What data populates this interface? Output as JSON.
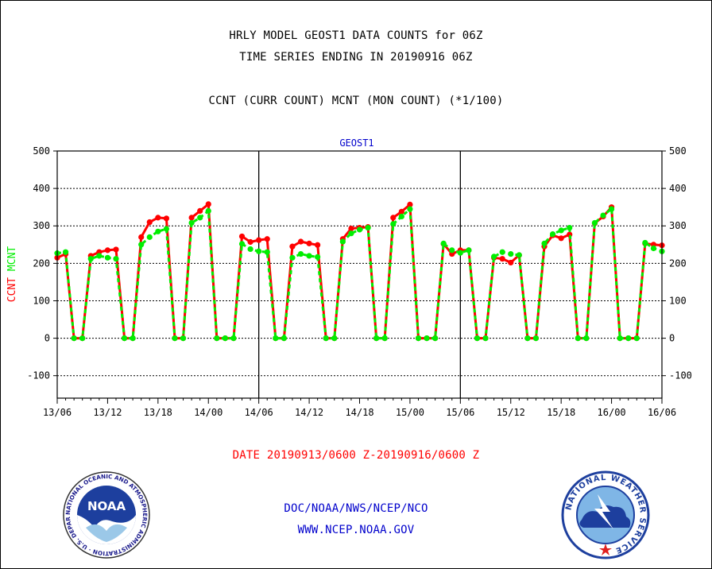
{
  "header": {
    "line1": "HRLY MODEL GEOST1 DATA COUNTS for 06Z",
    "line2": "TIME SERIES ENDING IN 20190916 06Z",
    "subtitle": "CCNT (CURR COUNT) MCNT (MON COUNT) (*1/100)"
  },
  "footer": {
    "date_range": "DATE 20190913/0600 Z-20190916/0600 Z",
    "org": "DOC/NOAA/NWS/NCEP/NCO",
    "url": "WWW.NCEP.NOAA.GOV"
  },
  "logos": {
    "left": "noaa-logo",
    "left_text": "NOAA",
    "left_ring": "NATIONAL OCEANIC AND ATMOSPHERIC ADMINISTRATION · U.S. DEPARTMENT OF COMMERCE",
    "right": "nws-logo",
    "right_ring": "NATIONAL WEATHER SERVICE"
  },
  "colors": {
    "ccnt": "#ff0000",
    "mcnt": "#00ee00",
    "text_blue": "#0000cc",
    "text_red": "#ff0000"
  },
  "chart_data": {
    "type": "line",
    "title": "GEOST1",
    "ylabel_parts": [
      {
        "text": "CCNT",
        "color": "#ff0000"
      },
      {
        "text": "MCNT",
        "color": "#00ee00"
      }
    ],
    "xlabel": "",
    "ylim": [
      -160,
      500
    ],
    "yticks": [
      -100,
      0,
      100,
      200,
      300,
      400,
      500
    ],
    "xlim": [
      0,
      72
    ],
    "xticks": [
      {
        "x": 0,
        "label": "13/06"
      },
      {
        "x": 6,
        "label": "13/12"
      },
      {
        "x": 12,
        "label": "13/18"
      },
      {
        "x": 18,
        "label": "14/00"
      },
      {
        "x": 24,
        "label": "14/06"
      },
      {
        "x": 30,
        "label": "14/12"
      },
      {
        "x": 36,
        "label": "14/18"
      },
      {
        "x": 42,
        "label": "15/00"
      },
      {
        "x": 48,
        "label": "15/06"
      },
      {
        "x": 54,
        "label": "15/12"
      },
      {
        "x": 60,
        "label": "15/18"
      },
      {
        "x": 66,
        "label": "16/00"
      },
      {
        "x": 72,
        "label": "16/06"
      }
    ],
    "day_separators": [
      24,
      48
    ],
    "grid": true,
    "x": [
      0,
      1,
      2,
      3,
      4,
      5,
      6,
      7,
      8,
      9,
      10,
      11,
      12,
      13,
      14,
      15,
      16,
      17,
      18,
      19,
      20,
      21,
      22,
      23,
      24,
      25,
      26,
      27,
      28,
      29,
      30,
      31,
      32,
      33,
      34,
      35,
      36,
      37,
      38,
      39,
      40,
      41,
      42,
      43,
      44,
      45,
      46,
      47,
      48,
      49,
      50,
      51,
      52,
      53,
      54,
      55,
      56,
      57,
      58,
      59,
      60,
      61,
      62,
      63,
      64,
      65,
      66,
      67,
      68,
      69,
      70,
      71,
      72
    ],
    "series": [
      {
        "name": "CCNT",
        "values": [
          215,
          225,
          0,
          0,
          220,
          230,
          235,
          237,
          0,
          0,
          270,
          310,
          322,
          320,
          0,
          0,
          322,
          340,
          358,
          0,
          0,
          0,
          272,
          257,
          262,
          265,
          0,
          0,
          245,
          258,
          253,
          249,
          0,
          0,
          265,
          293,
          295,
          297,
          0,
          0,
          322,
          338,
          357,
          0,
          0,
          0,
          252,
          225,
          235,
          235,
          0,
          0,
          215,
          212,
          202,
          222,
          0,
          0,
          245,
          275,
          267,
          277,
          0,
          0,
          307,
          325,
          350,
          0,
          0,
          0,
          253,
          250,
          248
        ]
      },
      {
        "name": "MCNT",
        "values": [
          227,
          230,
          0,
          0,
          212,
          220,
          215,
          212,
          0,
          0,
          250,
          270,
          285,
          292,
          0,
          0,
          308,
          322,
          340,
          0,
          0,
          0,
          252,
          238,
          232,
          230,
          0,
          0,
          215,
          225,
          220,
          217,
          0,
          0,
          258,
          280,
          290,
          295,
          0,
          0,
          305,
          325,
          345,
          0,
          0,
          0,
          253,
          235,
          228,
          235,
          0,
          0,
          218,
          230,
          225,
          222,
          0,
          0,
          253,
          278,
          288,
          295,
          0,
          0,
          308,
          328,
          345,
          0,
          0,
          0,
          255,
          240,
          232
        ]
      }
    ]
  }
}
